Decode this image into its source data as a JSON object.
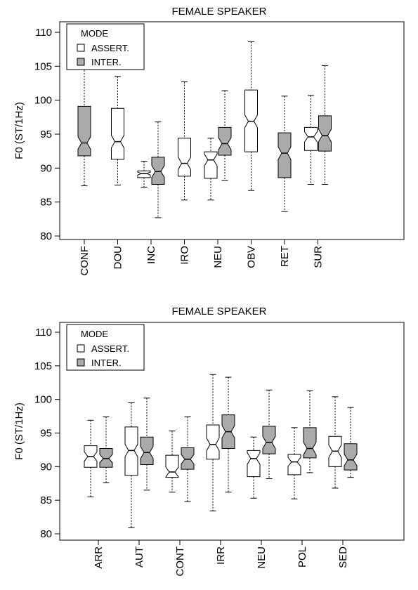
{
  "chart_data": [
    {
      "type": "box",
      "title": "FEMALE SPEAKER",
      "ylabel": "F0 (ST/1Hz)",
      "xlabel": "",
      "ylim": [
        80,
        110
      ],
      "yticks": [
        80,
        85,
        90,
        95,
        100,
        105,
        110
      ],
      "notched": true,
      "legend": {
        "title": "MODE",
        "placement": "top-left",
        "entries": [
          {
            "label": "ASSERT.",
            "color": "#ffffff"
          },
          {
            "label": "INTER.",
            "color": "#aaaaaa"
          }
        ]
      },
      "categories": [
        "CONF",
        "DOU",
        "INC",
        "IRO",
        "NEU",
        "OBV",
        "RET",
        "SUR"
      ],
      "series": [
        {
          "name": "ASSERT.",
          "color": "#ffffff",
          "boxes": [
            null,
            {
              "category": "DOU",
              "min": 87.5,
              "q1": 91.3,
              "median": 93.9,
              "q3": 98.8,
              "max": 103.5
            },
            {
              "category": "INC",
              "min": 87.2,
              "q1": 88.6,
              "median": 89.2,
              "q3": 89.6,
              "max": 91.0
            },
            {
              "category": "IRO",
              "min": 85.3,
              "q1": 88.8,
              "median": 90.7,
              "q3": 94.4,
              "max": 102.7
            },
            {
              "category": "NEU",
              "min": 85.3,
              "q1": 88.5,
              "median": 91.2,
              "q3": 92.4,
              "max": 94.4
            },
            {
              "category": "OBV",
              "min": 86.7,
              "q1": 92.4,
              "median": 96.9,
              "q3": 101.5,
              "max": 108.6
            },
            null,
            {
              "category": "SUR",
              "min": 87.6,
              "q1": 92.6,
              "median": 94.6,
              "q3": 96.0,
              "max": 100.7
            }
          ]
        },
        {
          "name": "INTER.",
          "color": "#aaaaaa",
          "boxes": [
            {
              "category": "CONF",
              "min": 87.4,
              "q1": 91.8,
              "median": 93.7,
              "q3": 99.1,
              "max": 109.8
            },
            null,
            {
              "category": "INC",
              "min": 82.7,
              "q1": 87.6,
              "median": 89.5,
              "q3": 91.6,
              "max": 96.8
            },
            null,
            {
              "category": "NEU",
              "min": 88.2,
              "q1": 91.9,
              "median": 93.6,
              "q3": 96.0,
              "max": 101.4
            },
            null,
            {
              "category": "RET",
              "min": 83.6,
              "q1": 88.6,
              "median": 92.2,
              "q3": 95.2,
              "max": 100.6
            },
            {
              "category": "SUR",
              "min": 87.6,
              "q1": 92.5,
              "median": 94.8,
              "q3": 97.7,
              "max": 105.1
            }
          ]
        }
      ]
    },
    {
      "type": "box",
      "title": "FEMALE SPEAKER",
      "ylabel": "F0 (ST/1Hz)",
      "xlabel": "",
      "ylim": [
        80,
        110
      ],
      "yticks": [
        80,
        85,
        90,
        95,
        100,
        105,
        110
      ],
      "notched": true,
      "legend": {
        "title": "MODE",
        "placement": "top-left",
        "entries": [
          {
            "label": "ASSERT.",
            "color": "#ffffff"
          },
          {
            "label": "INTER.",
            "color": "#aaaaaa"
          }
        ]
      },
      "categories": [
        "ARR",
        "AUT",
        "CONT",
        "IRR",
        "NEU",
        "POL",
        "SED"
      ],
      "series": [
        {
          "name": "ASSERT.",
          "color": "#ffffff",
          "boxes": [
            {
              "category": "ARR",
              "min": 85.5,
              "q1": 89.9,
              "median": 91.5,
              "q3": 93.1,
              "max": 96.9
            },
            {
              "category": "AUT",
              "min": 80.9,
              "q1": 88.7,
              "median": 92.4,
              "q3": 95.9,
              "max": 99.5
            },
            {
              "category": "CONT",
              "min": 86.2,
              "q1": 88.4,
              "median": 89.2,
              "q3": 91.7,
              "max": 95.3
            },
            {
              "category": "IRR",
              "min": 83.4,
              "q1": 91.1,
              "median": 93.3,
              "q3": 96.2,
              "max": 103.7
            },
            {
              "category": "NEU",
              "min": 85.3,
              "q1": 88.5,
              "median": 91.2,
              "q3": 92.4,
              "max": 94.4
            },
            {
              "category": "POL",
              "min": 85.2,
              "q1": 88.8,
              "median": 90.7,
              "q3": 91.8,
              "max": 95.8
            },
            {
              "category": "SED",
              "min": 86.8,
              "q1": 90.0,
              "median": 92.3,
              "q3": 94.5,
              "max": 100.4
            }
          ]
        },
        {
          "name": "INTER.",
          "color": "#aaaaaa",
          "boxes": [
            {
              "category": "ARR",
              "min": 87.6,
              "q1": 89.9,
              "median": 91.2,
              "q3": 92.7,
              "max": 97.4
            },
            {
              "category": "AUT",
              "min": 86.5,
              "q1": 90.3,
              "median": 92.1,
              "q3": 94.4,
              "max": 100.2
            },
            {
              "category": "CONT",
              "min": 84.8,
              "q1": 89.6,
              "median": 91.1,
              "q3": 92.8,
              "max": 97.4
            },
            {
              "category": "IRR",
              "min": 86.2,
              "q1": 92.7,
              "median": 95.2,
              "q3": 97.7,
              "max": 103.3
            },
            {
              "category": "NEU",
              "min": 88.2,
              "q1": 91.9,
              "median": 93.6,
              "q3": 96.0,
              "max": 101.4
            },
            {
              "category": "POL",
              "min": 89.1,
              "q1": 91.3,
              "median": 92.7,
              "q3": 95.8,
              "max": 101.3
            },
            {
              "category": "SED",
              "min": 88.4,
              "q1": 89.5,
              "median": 91.0,
              "q3": 93.4,
              "max": 98.8
            }
          ]
        }
      ]
    }
  ]
}
